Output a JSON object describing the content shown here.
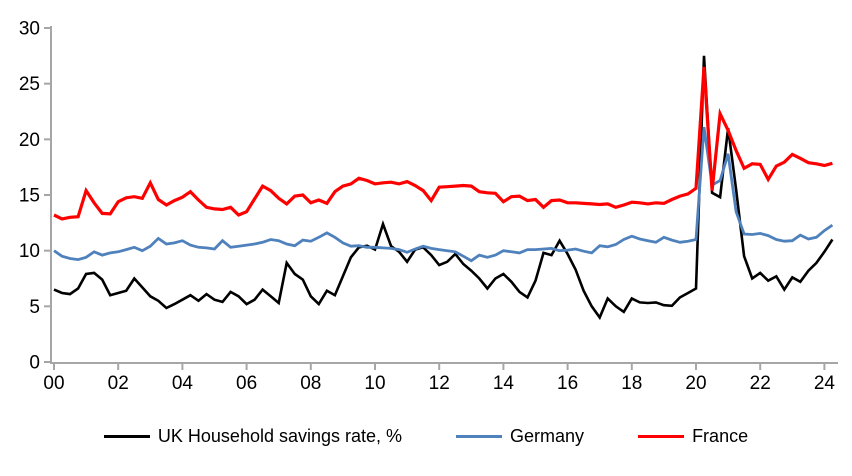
{
  "chart_data": {
    "type": "line",
    "title": "",
    "xlabel": "",
    "ylabel": "",
    "x_start_year": 2000,
    "x_step_years": 0.25,
    "x_tick_years": [
      2000,
      2002,
      2004,
      2006,
      2008,
      2010,
      2012,
      2014,
      2016,
      2018,
      2020,
      2022,
      2024
    ],
    "x_tick_labels": [
      "00",
      "02",
      "04",
      "06",
      "08",
      "10",
      "12",
      "14",
      "16",
      "18",
      "20",
      "22",
      "24"
    ],
    "ylim": [
      0,
      30
    ],
    "y_ticks": [
      0,
      5,
      10,
      15,
      20,
      25,
      30
    ],
    "grid": false,
    "legend_position": "bottom",
    "axis_color": "#a6a6a6",
    "text_color": "#000000",
    "background_color": "#ffffff",
    "series": [
      {
        "name": "UK Household savings rate, %",
        "color": "#000000",
        "stroke_width": 2.6,
        "values": [
          6.5,
          6.2,
          6.1,
          6.6,
          7.9,
          8.0,
          7.4,
          6.0,
          6.2,
          6.4,
          7.5,
          6.7,
          5.9,
          5.5,
          4.85,
          5.2,
          5.6,
          6.0,
          5.5,
          6.1,
          5.6,
          5.4,
          6.3,
          5.9,
          5.2,
          5.6,
          6.5,
          5.9,
          5.3,
          8.9,
          7.9,
          7.4,
          5.9,
          5.2,
          6.4,
          6.0,
          7.7,
          9.4,
          10.3,
          10.45,
          10.1,
          12.4,
          10.4,
          9.9,
          9.0,
          10.1,
          10.3,
          9.6,
          8.7,
          9.0,
          9.7,
          8.8,
          8.2,
          7.5,
          6.6,
          7.5,
          7.9,
          7.2,
          6.3,
          5.8,
          7.3,
          9.8,
          9.6,
          10.9,
          9.7,
          8.3,
          6.4,
          5.0,
          4.0,
          5.7,
          5.0,
          4.5,
          5.7,
          5.35,
          5.3,
          5.35,
          5.1,
          5.05,
          5.8,
          6.2,
          6.6,
          27.5,
          15.2,
          14.8,
          21.0,
          15.5,
          9.5,
          7.5,
          8.0,
          7.3,
          7.7,
          6.5,
          7.6,
          7.2,
          8.2,
          8.9,
          9.9,
          11.0
        ]
      },
      {
        "name": "Germany",
        "color": "#4f81bd",
        "stroke_width": 2.8,
        "values": [
          10.0,
          9.5,
          9.3,
          9.2,
          9.4,
          9.9,
          9.6,
          9.8,
          9.9,
          10.1,
          10.3,
          10.0,
          10.4,
          11.1,
          10.6,
          10.7,
          10.9,
          10.5,
          10.3,
          10.25,
          10.15,
          10.9,
          10.3,
          10.4,
          10.5,
          10.6,
          10.75,
          11.0,
          10.9,
          10.6,
          10.45,
          10.95,
          10.85,
          11.2,
          11.6,
          11.2,
          10.7,
          10.4,
          10.45,
          10.3,
          10.3,
          10.25,
          10.2,
          10.1,
          9.85,
          10.15,
          10.4,
          10.2,
          10.1,
          10.0,
          9.9,
          9.5,
          9.1,
          9.6,
          9.4,
          9.6,
          10.0,
          9.9,
          9.8,
          10.1,
          10.1,
          10.15,
          10.2,
          10.0,
          10.05,
          10.15,
          9.95,
          9.8,
          10.45,
          10.35,
          10.55,
          11.0,
          11.3,
          11.05,
          10.9,
          10.75,
          11.2,
          10.95,
          10.75,
          10.85,
          11.0,
          21.1,
          15.9,
          16.3,
          18.7,
          13.5,
          11.5,
          11.45,
          11.55,
          11.35,
          11.0,
          10.85,
          10.9,
          11.4,
          11.05,
          11.2,
          11.8,
          12.3
        ]
      },
      {
        "name": "France",
        "color": "#ff0000",
        "stroke_width": 3.2,
        "values": [
          13.2,
          12.85,
          13.0,
          13.05,
          15.4,
          14.3,
          13.35,
          13.3,
          14.4,
          14.75,
          14.85,
          14.7,
          16.1,
          14.6,
          14.1,
          14.5,
          14.8,
          15.3,
          14.55,
          13.9,
          13.75,
          13.7,
          13.9,
          13.2,
          13.5,
          14.65,
          15.8,
          15.4,
          14.7,
          14.2,
          14.9,
          15.0,
          14.3,
          14.55,
          14.25,
          15.3,
          15.8,
          16.0,
          16.5,
          16.3,
          16.0,
          16.1,
          16.15,
          16.0,
          16.2,
          15.85,
          15.4,
          14.5,
          15.7,
          15.75,
          15.8,
          15.85,
          15.8,
          15.3,
          15.2,
          15.15,
          14.4,
          14.85,
          14.9,
          14.5,
          14.6,
          13.9,
          14.5,
          14.55,
          14.3,
          14.3,
          14.25,
          14.2,
          14.15,
          14.2,
          13.9,
          14.1,
          14.35,
          14.3,
          14.2,
          14.3,
          14.25,
          14.6,
          14.9,
          15.1,
          15.6,
          26.5,
          15.4,
          22.3,
          20.8,
          19.0,
          17.4,
          17.8,
          17.75,
          16.4,
          17.6,
          17.95,
          18.65,
          18.3,
          17.9,
          17.8,
          17.65,
          17.85
        ]
      }
    ]
  }
}
